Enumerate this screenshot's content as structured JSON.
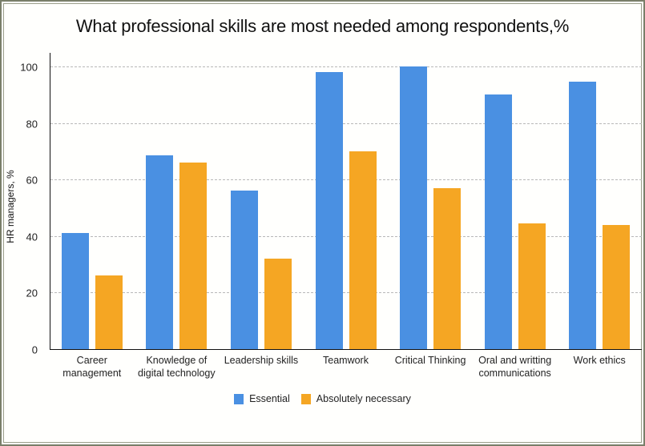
{
  "chart_data": {
    "type": "bar",
    "title": "What professional skills are most needed among respondents,%",
    "xlabel": "",
    "ylabel": "HR managers, %",
    "ylim": [
      0,
      100
    ],
    "yticks": [
      0,
      20,
      40,
      60,
      80,
      100
    ],
    "grid": true,
    "legend_position": "bottom",
    "categories": [
      "Career management",
      "Knowledge of digital technology",
      "Leadership skills",
      "Teamwork",
      "Critical Thinking",
      "Oral and writting communications",
      "Work ethics"
    ],
    "category_lines": [
      [
        "Career",
        "management"
      ],
      [
        "Knowledge of",
        "digital technology"
      ],
      [
        "Leadership skills"
      ],
      [
        "Teamwork"
      ],
      [
        "Critical Thinking"
      ],
      [
        "Oral and writting",
        "communications"
      ],
      [
        "Work ethics"
      ]
    ],
    "series": [
      {
        "name": "Essential",
        "color": "#4a90e2",
        "values": [
          41,
          68.5,
          56,
          98,
          100,
          90,
          94.5
        ]
      },
      {
        "name": "Absolutely necessary",
        "color": "#f5a623",
        "values": [
          26,
          66,
          32,
          70,
          57,
          44.5,
          44
        ]
      }
    ]
  }
}
